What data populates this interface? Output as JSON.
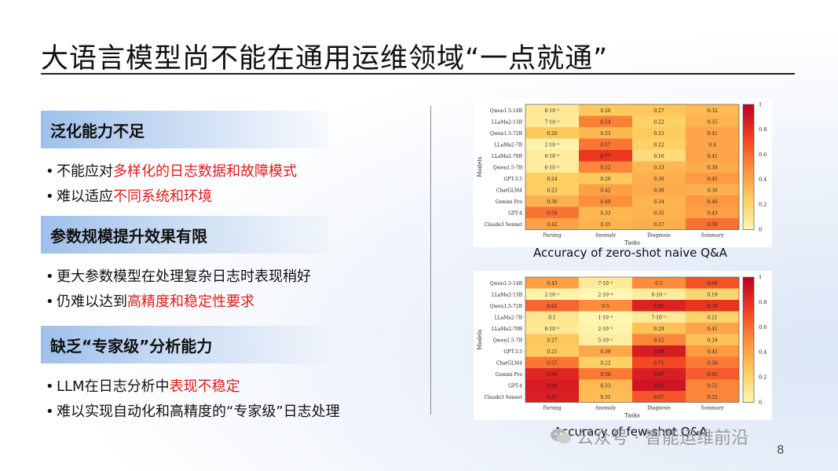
{
  "title": "大语言模型尚不能在通用运维领域“一点就通”",
  "sections": [
    {
      "heading": "泛化能力不足",
      "bullets": [
        {
          "plain": "不能应对",
          "red": "多样化的日志数据和故障模式"
        },
        {
          "plain": "难以适应",
          "red": "不同系统和环境"
        }
      ]
    },
    {
      "heading": "参数规模提升效果有限",
      "bullets": [
        {
          "plain": "更大参数模型在处理复杂日志时表现稍好",
          "red": ""
        },
        {
          "plain": "仍难以达到",
          "red": "高精度和稳定性要求"
        }
      ]
    },
    {
      "heading": "缺乏“专家级”分析能力",
      "bullets": [
        {
          "plain": "LLM在日志分析中",
          "red": "表现不稳定"
        },
        {
          "plain": "难以实现自动化和高精度的“专家级”日志处理",
          "red": ""
        }
      ]
    }
  ],
  "bullet_char": "•",
  "watermark": "公众号 · 智能运维前沿",
  "page_number": "8",
  "chart_data": [
    {
      "type": "heatmap",
      "caption": "Accuracy of zero-shot naive Q&A",
      "xlabel": "Tasks",
      "ylabel": "Models",
      "x": [
        "Parsing",
        "Anomaly",
        "Diagnosis",
        "Summary"
      ],
      "y": [
        "Qwen1.5-14B",
        "LLaMa2-13B",
        "Qwen1.5-72B",
        "LLaMa2-7B",
        "LLaMa2-70B",
        "Qwen1.5-7B",
        "GPT-3.5",
        "ChatGLM4",
        "Gemini Pro",
        "GPT-4",
        "Claude3 Sonnet"
      ],
      "labels": [
        [
          "8·10⁻²",
          "0.26",
          "0.27",
          "0.32"
        ],
        [
          "7·10⁻²",
          "0.54",
          "0.22",
          "0.35"
        ],
        [
          "0.26",
          "0.33",
          "0.25",
          "0.41"
        ],
        [
          "2·10⁻²",
          "0.57",
          "0.22",
          "0.4"
        ],
        [
          "6·10⁻²",
          "0.77",
          "0.16",
          "0.41"
        ],
        [
          "6·10⁻²",
          "0.52",
          "0.33",
          "0.38"
        ],
        [
          "0.24",
          "0.26",
          "0.36",
          "0.45"
        ],
        [
          "0.23",
          "0.42",
          "0.38",
          "0.36"
        ],
        [
          "0.36",
          "0.49",
          "0.34",
          "0.46"
        ],
        [
          "0.58",
          "0.33",
          "0.35",
          "0.43"
        ],
        [
          "0.42",
          "0.35",
          "0.37",
          "0.59"
        ]
      ],
      "values": [
        [
          0.08,
          0.26,
          0.27,
          0.32
        ],
        [
          0.07,
          0.54,
          0.22,
          0.35
        ],
        [
          0.26,
          0.33,
          0.25,
          0.41
        ],
        [
          0.02,
          0.57,
          0.22,
          0.4
        ],
        [
          0.06,
          0.77,
          0.16,
          0.41
        ],
        [
          0.06,
          0.52,
          0.33,
          0.38
        ],
        [
          0.24,
          0.26,
          0.36,
          0.45
        ],
        [
          0.23,
          0.42,
          0.38,
          0.36
        ],
        [
          0.36,
          0.49,
          0.34,
          0.46
        ],
        [
          0.58,
          0.33,
          0.35,
          0.43
        ],
        [
          0.42,
          0.35,
          0.37,
          0.59
        ]
      ],
      "colorbar_ticks": [
        "0",
        "0.2",
        "0.4",
        "0.6",
        "0.8",
        "1"
      ],
      "vmin": 0,
      "vmax": 1
    },
    {
      "type": "heatmap",
      "caption": "Accuracy of few-shot Q&A",
      "xlabel": "Tasks",
      "ylabel": "Models",
      "x": [
        "Parsing",
        "Anomaly",
        "Diagnosis",
        "Summary"
      ],
      "y": [
        "Qwen1.5-14B",
        "LLaMa2-13B",
        "Qwen1.5-72B",
        "LLaMa2-7B",
        "LLaMa2-70B",
        "Qwen1.5-7B",
        "GPT-3.5",
        "ChatGLM4",
        "Gemini Pro",
        "GPT-4",
        "Claude3 Sonnet"
      ],
      "labels": [
        [
          "0.43",
          "7·10⁻²",
          "0.5",
          "0.68"
        ],
        [
          "2·10⁻²",
          "2·10⁻⁴",
          "6·10⁻²",
          "0.19"
        ],
        [
          "0.62",
          "0.5",
          "0.85",
          "0.78"
        ],
        [
          "0.1",
          "1·10⁻⁵",
          "7·10⁻²",
          "0.21"
        ],
        [
          "8·10⁻²",
          "2·10⁻²",
          "0.29",
          "0.41"
        ],
        [
          "0.27",
          "5·10⁻²",
          "0.52",
          "0.29"
        ],
        [
          "0.25",
          "0.39",
          "0.88",
          "0.45"
        ],
        [
          "0.57",
          "0.22",
          "0.71",
          "0.56"
        ],
        [
          "0.84",
          "0.56",
          "0.87",
          "0.65"
        ],
        [
          "0.88",
          "0.33",
          "0.91",
          "0.52"
        ],
        [
          "0.87",
          "0.31",
          "0.67",
          "0.52"
        ]
      ],
      "values": [
        [
          0.43,
          0.07,
          0.5,
          0.68
        ],
        [
          0.02,
          0.0002,
          0.06,
          0.19
        ],
        [
          0.62,
          0.5,
          0.85,
          0.78
        ],
        [
          0.1,
          1e-05,
          0.07,
          0.21
        ],
        [
          0.08,
          0.02,
          0.29,
          0.41
        ],
        [
          0.27,
          0.05,
          0.52,
          0.29
        ],
        [
          0.25,
          0.39,
          0.88,
          0.45
        ],
        [
          0.57,
          0.22,
          0.71,
          0.56
        ],
        [
          0.84,
          0.56,
          0.87,
          0.65
        ],
        [
          0.88,
          0.33,
          0.91,
          0.52
        ],
        [
          0.87,
          0.31,
          0.67,
          0.52
        ]
      ],
      "colorbar_ticks": [
        "0",
        "0.2",
        "0.4",
        "0.6",
        "0.8",
        "1"
      ],
      "vmin": 0,
      "vmax": 1
    }
  ]
}
